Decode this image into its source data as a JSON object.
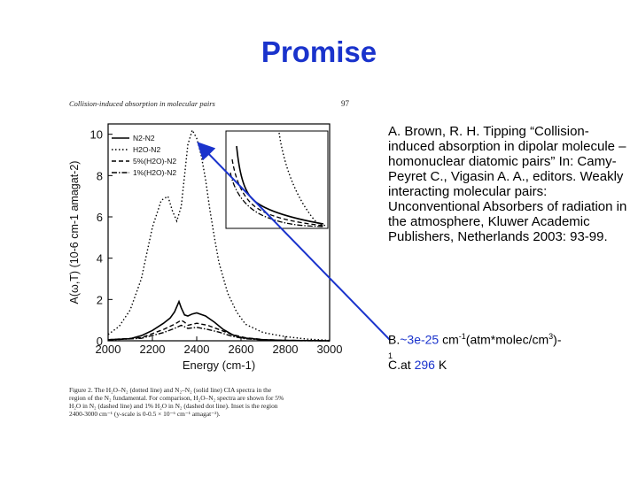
{
  "slide": {
    "title": "Promise",
    "reference": "A. Brown, R. H. Tipping “Collision-induced absorption in dipolar molecule – homonuclear diatomic pairs” In: Camy-Peyret C., Vigasin A. A., editors. Weakly interacting molecular pairs: Unconventional Absorbers of radiation in the atmosphere, Kluwer Academic Publishers, Netherlands 2003: 93-99.",
    "point_b": {
      "prefix": "B.",
      "value": "~3e-25",
      "unit": "cm",
      "exp1": "-1",
      "unit2": "(atm*molec/cm",
      "exp2": "3",
      "suffix": ")-",
      "trail": "1"
    },
    "point_c": {
      "prefix": "C.",
      "text": "at ",
      "value": "296",
      "unit": " K"
    },
    "colors": {
      "title": "#1a33cc",
      "highlight": "#1a33cc",
      "arrow": "#1a33cc"
    }
  },
  "figure": {
    "header": "Collision-induced absorption in molecular pairs",
    "page_number": "97",
    "caption": "Figure 2.   The H2O–N2 (dotted line) and N2–N2 (solid line) CIA spectra in the region of the N2 fundamental. For comparison, H2O–N2 spectra are shown for 5% H2O in N2 (dashed line) and 1% H2O in N2 (dashed dot line). Inset is the region 2400-3000 cm-1 (y-scale is 0-0.5 × 10-6 cm-1 amagat-2).",
    "legend": [
      "N2-N2",
      "H2O-N2",
      "5%(H2O)-N2",
      "1%(H2O)-N2"
    ]
  },
  "chart_data": {
    "type": "line",
    "xlabel": "Energy (cm-1)",
    "ylabel": "A(ω,T) (10-6 cm-1 amagat-2)",
    "xlim": [
      2000,
      3000
    ],
    "ylim": [
      0,
      10.5
    ],
    "xticks": [
      2000,
      2200,
      2400,
      2600,
      2800,
      3000
    ],
    "yticks": [
      0,
      2,
      4,
      6,
      8,
      10
    ],
    "legend_position": "top-left",
    "series": [
      {
        "name": "N2-N2",
        "style": "solid",
        "x": [
          2000,
          2100,
          2150,
          2200,
          2250,
          2280,
          2300,
          2320,
          2330,
          2345,
          2360,
          2380,
          2400,
          2440,
          2480,
          2520,
          2560,
          2600,
          2700,
          2800,
          3000
        ],
        "y": [
          0.05,
          0.1,
          0.25,
          0.5,
          0.85,
          1.1,
          1.4,
          1.9,
          1.6,
          1.25,
          1.2,
          1.3,
          1.35,
          1.2,
          0.9,
          0.55,
          0.3,
          0.15,
          0.05,
          0.02,
          0.0
        ]
      },
      {
        "name": "H2O-N2",
        "style": "dotted",
        "x": [
          2000,
          2050,
          2100,
          2150,
          2200,
          2240,
          2270,
          2290,
          2310,
          2330,
          2345,
          2360,
          2380,
          2400,
          2420,
          2440,
          2460,
          2480,
          2500,
          2540,
          2580,
          2620,
          2700,
          2800,
          2900,
          3000
        ],
        "y": [
          0.3,
          0.7,
          1.5,
          3.0,
          5.5,
          6.8,
          7.0,
          6.3,
          5.8,
          6.5,
          8.0,
          9.5,
          10.2,
          9.8,
          9.0,
          7.8,
          6.3,
          5.0,
          3.8,
          2.3,
          1.4,
          0.8,
          0.4,
          0.2,
          0.08,
          0.02
        ]
      },
      {
        "name": "5%(H2O)-N2",
        "style": "dashed",
        "x": [
          2000,
          2150,
          2250,
          2300,
          2330,
          2345,
          2360,
          2400,
          2450,
          2500,
          2560,
          2620,
          2700,
          2800,
          3000
        ],
        "y": [
          0.05,
          0.15,
          0.55,
          0.8,
          1.0,
          0.9,
          0.75,
          0.85,
          0.75,
          0.55,
          0.3,
          0.15,
          0.06,
          0.02,
          0.0
        ]
      },
      {
        "name": "1%(H2O)-N2",
        "style": "dashdot",
        "x": [
          2000,
          2150,
          2250,
          2300,
          2330,
          2345,
          2360,
          2400,
          2450,
          2500,
          2560,
          2620,
          2700,
          2800,
          3000
        ],
        "y": [
          0.04,
          0.12,
          0.4,
          0.6,
          0.75,
          0.68,
          0.6,
          0.65,
          0.55,
          0.42,
          0.22,
          0.1,
          0.04,
          0.01,
          0.0
        ]
      }
    ]
  }
}
